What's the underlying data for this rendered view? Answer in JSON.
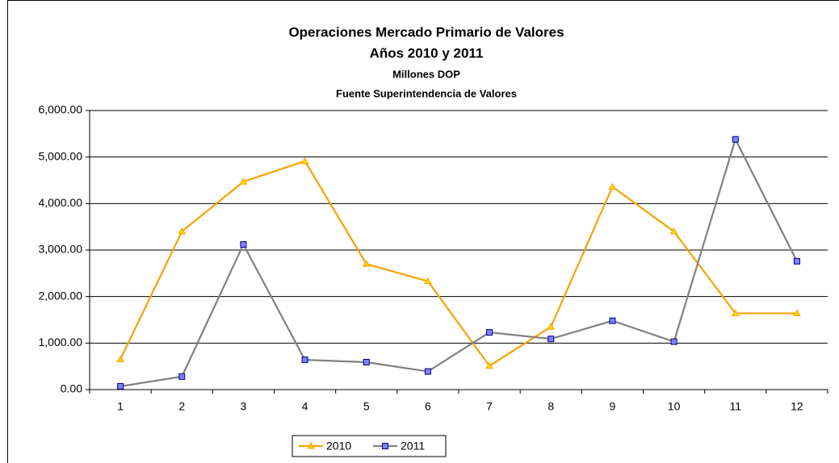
{
  "chart_data": {
    "type": "line",
    "title": "Operaciones Mercado Primario de Valores",
    "subtitle": "Años 2010 y 2011",
    "notes": [
      "Millones DOP",
      "Fuente Superintendencia de Valores"
    ],
    "categories": [
      "1",
      "2",
      "3",
      "4",
      "5",
      "6",
      "7",
      "8",
      "9",
      "10",
      "11",
      "12"
    ],
    "series": [
      {
        "name": "2010",
        "color": "#f5a300",
        "marker": "triangle",
        "marker_color": "#ffd700",
        "values": [
          650,
          3400,
          4470,
          4910,
          2700,
          2330,
          510,
          1350,
          4360,
          3400,
          1640,
          1640
        ]
      },
      {
        "name": "2011",
        "color": "#808080",
        "marker": "square",
        "marker_color": "#8080ff",
        "values": [
          70,
          280,
          3120,
          640,
          590,
          390,
          1230,
          1090,
          1480,
          1030,
          5380,
          2760
        ]
      }
    ],
    "ylim": [
      0,
      6000
    ],
    "yticks": [
      {
        "value": 0,
        "label": "0.00"
      },
      {
        "value": 1000,
        "label": "1,000.00"
      },
      {
        "value": 2000,
        "label": "2,000.00"
      },
      {
        "value": 3000,
        "label": "3,000.00"
      },
      {
        "value": 4000,
        "label": "4,000.00"
      },
      {
        "value": 5000,
        "label": "5,000.00"
      },
      {
        "value": 6000,
        "label": "6,000.00"
      }
    ],
    "grid": true,
    "legend": "bottom"
  }
}
